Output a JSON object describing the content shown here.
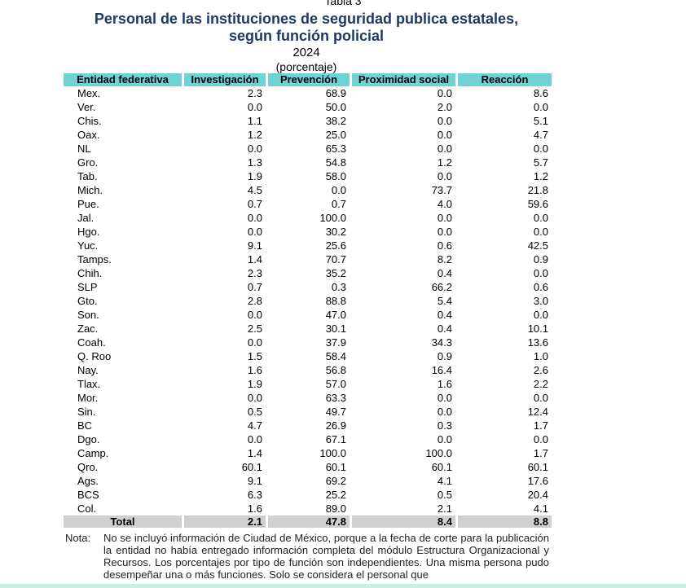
{
  "caption": "Tabla 3",
  "title_line1": "Personal de las instituciones de seguridad publica estatales,",
  "title_line2": "según función policial",
  "year": "2024",
  "unit": "(porcentaje)",
  "table": {
    "headers": [
      "Entidad federativa",
      "Investigación",
      "Prevención",
      "Proximidad social",
      "Reacción"
    ],
    "rows": [
      [
        "Mex.",
        "2.3",
        "68.9",
        "0.0",
        "8.6"
      ],
      [
        "Ver.",
        "0.0",
        "50.0",
        "2.0",
        "0.0"
      ],
      [
        "Chis.",
        "1.1",
        "38.2",
        "0.0",
        "5.1"
      ],
      [
        "Oax.",
        "1.2",
        "25.0",
        "0.0",
        "4.7"
      ],
      [
        "NL",
        "0.0",
        "65.3",
        "0.0",
        "0.0"
      ],
      [
        "Gro.",
        "1.3",
        "54.8",
        "1.2",
        "5.7"
      ],
      [
        "Tab.",
        "1.9",
        "58.0",
        "0.0",
        "1.2"
      ],
      [
        "Mich.",
        "4.5",
        "0.0",
        "73.7",
        "21.8"
      ],
      [
        "Pue.",
        "0.7",
        "0.7",
        "4.0",
        "59.6"
      ],
      [
        "Jal.",
        "0.0",
        "100.0",
        "0.0",
        "0.0"
      ],
      [
        "Hgo.",
        "0.0",
        "30.2",
        "0.0",
        "0.0"
      ],
      [
        "Yuc.",
        "9.1",
        "25.6",
        "0.6",
        "42.5"
      ],
      [
        "Tamps.",
        "1.4",
        "70.7",
        "8.2",
        "0.9"
      ],
      [
        "Chih.",
        "2.3",
        "35.2",
        "0.4",
        "0.0"
      ],
      [
        "SLP",
        "0.7",
        "0.3",
        "66.2",
        "0.6"
      ],
      [
        "Gto.",
        "2.8",
        "88.8",
        "5.4",
        "3.0"
      ],
      [
        "Son.",
        "0.0",
        "47.0",
        "0.4",
        "0.0"
      ],
      [
        "Zac.",
        "2.5",
        "30.1",
        "0.4",
        "10.1"
      ],
      [
        "Coah.",
        "0.0",
        "37.9",
        "34.3",
        "13.6"
      ],
      [
        "Q. Roo",
        "1.5",
        "58.4",
        "0.9",
        "1.0"
      ],
      [
        "Nay.",
        "1.6",
        "56.8",
        "16.4",
        "2.6"
      ],
      [
        "Tlax.",
        "1.9",
        "57.0",
        "1.6",
        "2.2"
      ],
      [
        "Mor.",
        "0.0",
        "63.3",
        "0.0",
        "0.0"
      ],
      [
        "Sin.",
        "0.5",
        "49.7",
        "0.0",
        "12.4"
      ],
      [
        "BC",
        "4.7",
        "26.9",
        "0.3",
        "1.7"
      ],
      [
        "Dgo.",
        "0.0",
        "67.1",
        "0.0",
        "0.0"
      ],
      [
        "Camp.",
        "1.4",
        "100.0",
        "100.0",
        "1.7"
      ],
      [
        "Qro.",
        "60.1",
        "60.1",
        "60.1",
        "60.1"
      ],
      [
        "Ags.",
        "9.1",
        "69.2",
        "4.1",
        "17.6"
      ],
      [
        "BCS",
        "6.3",
        "25.2",
        "0.5",
        "20.4"
      ],
      [
        "Col.",
        "1.6",
        "89.0",
        "2.1",
        "4.1"
      ]
    ],
    "total": [
      "Total",
      "2.1",
      "47.8",
      "8.4",
      "8.8"
    ]
  },
  "note_label": "Nota:",
  "note_text": "No se incluyó información de Ciudad de México, porque a la fecha de corte para la publicación la entidad no había entregado información completa del módulo Estructura Organizacional y Recursos. Los porcentajes por tipo de función son independientes. Una misma persona pudo desempeñar una o más funciones. Solo se considera el personal que",
  "colors": {
    "title": "#1f3864",
    "header_bg": "#6fd3d3",
    "total_bg": "#d0d0d0",
    "bottom_band": "#c9efe4"
  }
}
